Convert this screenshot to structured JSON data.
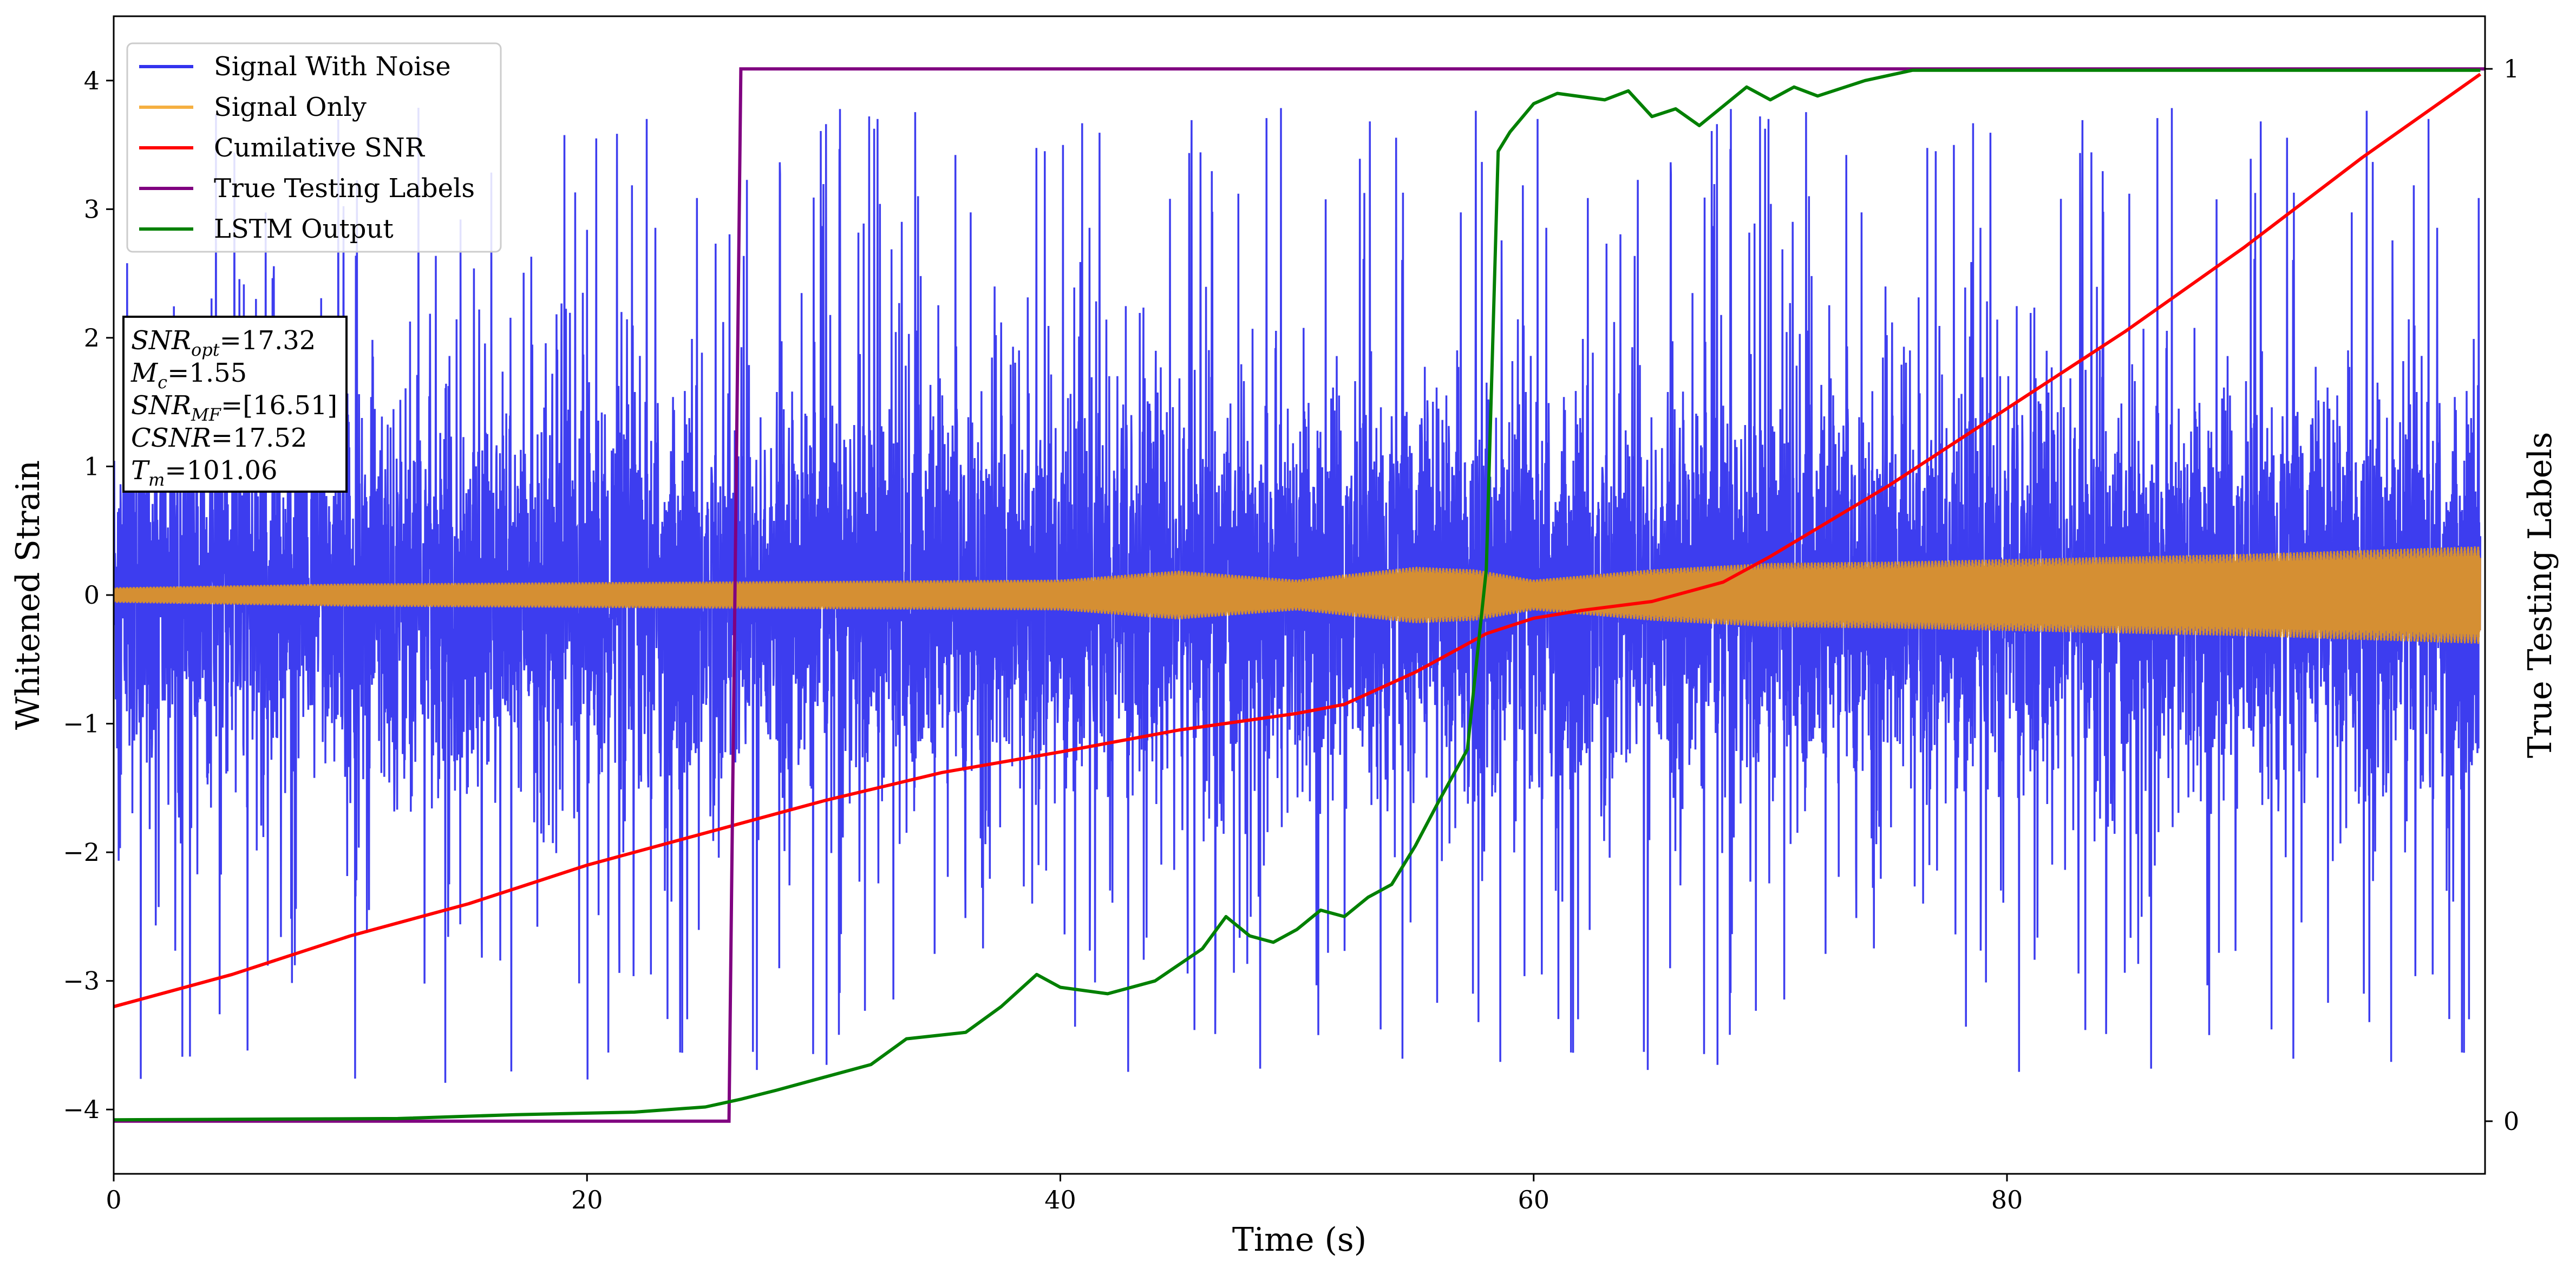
{
  "chart_data": {
    "type": "line",
    "xlabel": "Time (s)",
    "ylabel": "Whitened Strain",
    "y2label": "True Testing Labels",
    "xlim": [
      0,
      100.2
    ],
    "ylim": [
      -4.5,
      4.5
    ],
    "y2lim": [
      -0.05,
      1.05
    ],
    "xticks": [
      "0",
      "20",
      "40",
      "60",
      "80"
    ],
    "yticks": [
      "−4",
      "−3",
      "−2",
      "−1",
      "0",
      "1",
      "2",
      "3",
      "4"
    ],
    "y2ticks": [
      "0",
      "1"
    ],
    "legend_position": "top-left",
    "grid": false,
    "series": [
      {
        "name": "Signal With Noise",
        "color": "#3333ee",
        "axis": "left",
        "description": "dense noisy strain, mostly within ±1.5 with spikes to ±3.8",
        "envelope": {
          "x": [
            0,
            100
          ],
          "typical_amplitude": 1.3,
          "peak_amplitude": 3.8
        }
      },
      {
        "name": "Signal Only",
        "color": "#f5b041",
        "axis": "left",
        "x": [
          0,
          10,
          20,
          30,
          40,
          45,
          50,
          55,
          57.5,
          60,
          65,
          70,
          75,
          80,
          85,
          90,
          95,
          100
        ],
        "amplitude": [
          0.06,
          0.09,
          0.1,
          0.11,
          0.12,
          0.19,
          0.12,
          0.22,
          0.2,
          0.12,
          0.2,
          0.25,
          0.26,
          0.28,
          0.3,
          0.32,
          0.35,
          0.38
        ]
      },
      {
        "name": "Cumilative SNR",
        "color": "#ff0000",
        "axis": "left",
        "x": [
          0,
          5,
          10,
          15,
          20,
          25,
          30,
          35,
          40,
          45,
          50,
          52,
          55,
          58,
          60,
          62,
          65,
          68,
          70,
          75,
          80,
          85,
          90,
          95,
          100
        ],
        "y": [
          -3.2,
          -2.95,
          -2.65,
          -2.4,
          -2.1,
          -1.85,
          -1.6,
          -1.38,
          -1.22,
          -1.05,
          -0.92,
          -0.85,
          -0.6,
          -0.3,
          -0.18,
          -0.12,
          -0.05,
          0.1,
          0.3,
          0.85,
          1.45,
          2.05,
          2.7,
          3.4,
          4.05
        ]
      },
      {
        "name": "True Testing Labels",
        "color": "#800080",
        "axis": "right",
        "x": [
          0,
          26.0,
          26.5,
          100.2
        ],
        "y": [
          0,
          0,
          1,
          1
        ]
      },
      {
        "name": "LSTM Output",
        "color": "#008000",
        "axis": "left",
        "x": [
          0,
          12,
          17,
          22,
          25,
          26.5,
          28,
          30,
          32,
          33.5,
          36,
          37.5,
          39,
          40,
          42,
          44,
          46,
          47,
          48,
          49,
          50,
          51,
          52,
          53,
          54,
          55,
          56,
          57.2,
          57.6,
          58,
          58.5,
          59,
          60,
          61,
          63,
          64,
          65,
          66,
          67,
          68,
          69,
          70,
          71,
          72,
          74,
          76,
          80,
          90,
          100
        ],
        "y": [
          -4.08,
          -4.07,
          -4.04,
          -4.02,
          -3.98,
          -3.92,
          -3.85,
          -3.75,
          -3.65,
          -3.45,
          -3.4,
          -3.2,
          -2.95,
          -3.05,
          -3.1,
          -3.0,
          -2.75,
          -2.5,
          -2.65,
          -2.7,
          -2.6,
          -2.45,
          -2.5,
          -2.35,
          -2.25,
          -1.95,
          -1.6,
          -1.2,
          -0.5,
          0.2,
          3.45,
          3.6,
          3.82,
          3.9,
          3.85,
          3.92,
          3.72,
          3.78,
          3.65,
          3.8,
          3.95,
          3.85,
          3.95,
          3.88,
          4.0,
          4.08,
          4.08,
          4.08,
          4.08
        ]
      }
    ],
    "annotation": {
      "lines": [
        {
          "base": "SNR",
          "sub": "opt",
          "value": "=17.32"
        },
        {
          "base": "M",
          "sub": "c",
          "value": "=1.55"
        },
        {
          "base": "SNR",
          "sub": "MF",
          "value": "=[16.51]"
        },
        {
          "base": "CSNR",
          "sub": "",
          "value": "=17.52"
        },
        {
          "base": "T",
          "sub": "m",
          "value": "=101.06"
        }
      ]
    }
  }
}
